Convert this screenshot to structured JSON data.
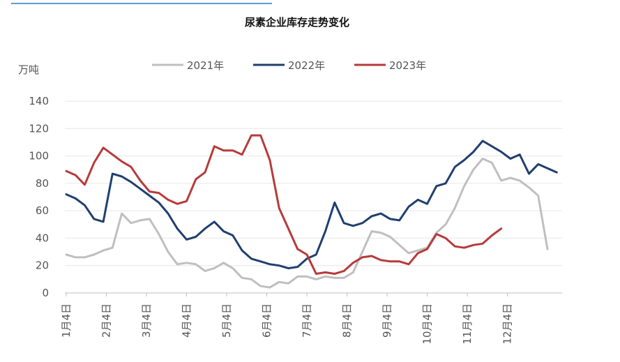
{
  "chart_data": {
    "type": "line",
    "title": "尿素企业库存走势变化",
    "ylabel": "万吨",
    "ylim": [
      0,
      140
    ],
    "yticks": [
      0,
      20,
      40,
      60,
      80,
      100,
      120,
      140
    ],
    "x_tick_labels": [
      "1月4日",
      "2月4日",
      "3月4日",
      "4月4日",
      "5月4日",
      "6月4日",
      "7月4日",
      "8月4日",
      "9月4日",
      "10月4日",
      "11月4日",
      "12月4日"
    ],
    "grid": "horizontal",
    "legend_position": "top-center",
    "series": [
      {
        "name": "2021年",
        "color": "#BFBFBF",
        "values": [
          28,
          26,
          26,
          28,
          31,
          33,
          58,
          51,
          53,
          54,
          43,
          30,
          21,
          22,
          21,
          16,
          18,
          22,
          18,
          11,
          10,
          5,
          4,
          8,
          7,
          12,
          12,
          10,
          12,
          11,
          11,
          15,
          30,
          45,
          44,
          41,
          35,
          29,
          31,
          33,
          44,
          50,
          62,
          78,
          90,
          98,
          95,
          82,
          84,
          82,
          77,
          71,
          32
        ]
      },
      {
        "name": "2022年",
        "color": "#1F3F6E",
        "values": [
          72,
          69,
          64,
          54,
          52,
          87,
          85,
          81,
          76,
          71,
          66,
          58,
          47,
          39,
          41,
          47,
          52,
          45,
          42,
          31,
          25,
          23,
          21,
          20,
          18,
          19,
          25,
          28,
          45,
          66,
          51,
          49,
          51,
          56,
          58,
          54,
          53,
          63,
          68,
          65,
          78,
          80,
          92,
          97,
          103,
          111,
          107,
          103,
          98,
          101,
          87,
          94,
          91,
          88
        ]
      },
      {
        "name": "2023年",
        "color": "#B83A3A",
        "values": [
          89,
          86,
          79,
          95,
          106,
          101,
          96,
          92,
          82,
          74,
          73,
          68,
          65,
          67,
          83,
          88,
          107,
          104,
          104,
          101,
          115,
          115,
          97,
          62,
          47,
          32,
          28,
          14,
          15,
          14,
          16,
          22,
          26,
          27,
          24,
          23,
          23,
          21,
          29,
          32,
          43,
          40,
          34,
          33,
          35,
          36,
          42,
          47
        ]
      }
    ]
  }
}
